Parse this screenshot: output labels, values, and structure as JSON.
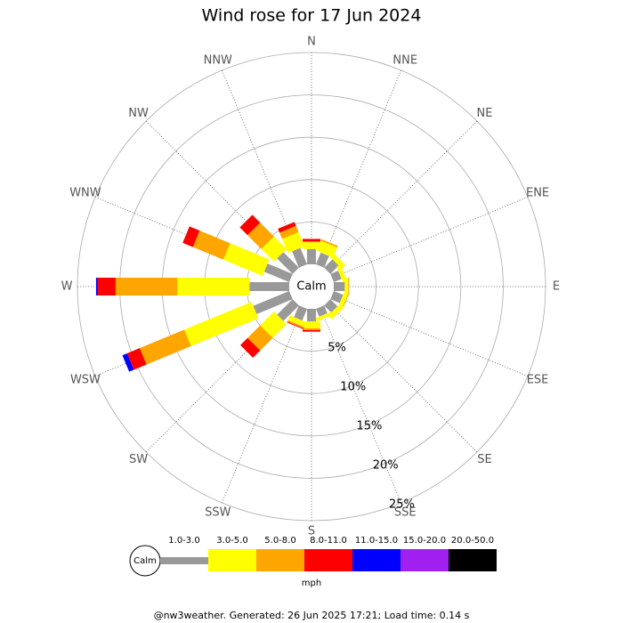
{
  "chart_data": {
    "type": "windrose",
    "title": "Wind rose for 17 Jun 2024",
    "directions": [
      "N",
      "NNE",
      "NE",
      "ENE",
      "E",
      "ESE",
      "SE",
      "SSE",
      "S",
      "SSW",
      "SW",
      "WSW",
      "W",
      "WNW",
      "NW",
      "NNW"
    ],
    "calm_label": "Calm",
    "unit": "mph",
    "rlim": [
      0,
      25
    ],
    "rticks": [
      {
        "value": 5,
        "label": "5%"
      },
      {
        "value": 10,
        "label": "10%"
      },
      {
        "value": 15,
        "label": "15%"
      },
      {
        "value": 20,
        "label": "20%"
      },
      {
        "value": 25,
        "label": "25%"
      }
    ],
    "series": [
      {
        "name": "1.0-3.0",
        "color": "#999999",
        "values": [
          1.8,
          1.5,
          1.4,
          1.0,
          1.3,
          1.2,
          1.2,
          1.0,
          1.5,
          1.5,
          2.6,
          4.6,
          4.7,
          3.2,
          2.6,
          2.1
        ]
      },
      {
        "name": "3.0-5.0",
        "color": "#ffff00",
        "values": [
          0.8,
          1.3,
          0.6,
          0.5,
          0.4,
          0.5,
          0.6,
          0.4,
          0.8,
          0.6,
          2.3,
          8.6,
          8.5,
          5.0,
          2.1,
          1.8
        ]
      },
      {
        "name": "5.0-8.0",
        "color": "#ffa500",
        "values": [
          0.1,
          0.2,
          0,
          0,
          0.1,
          0.1,
          0,
          0,
          0.2,
          0.2,
          2.1,
          5.7,
          7.3,
          3.9,
          2.3,
          0.8
        ]
      },
      {
        "name": "8.0-11.0",
        "color": "#ff0000",
        "values": [
          0.3,
          0,
          0,
          0,
          0,
          0,
          0,
          0,
          0.2,
          0.1,
          1.2,
          1.6,
          2.1,
          1.3,
          1.3,
          0.5
        ]
      },
      {
        "name": "11.0-15.0",
        "color": "#0000ff",
        "values": [
          0,
          0,
          0,
          0,
          0,
          0,
          0,
          0,
          0,
          0,
          0,
          0.6,
          0.2,
          0,
          0,
          0
        ]
      },
      {
        "name": "15.0-20.0",
        "color": "#a020f0",
        "values": [
          0,
          0,
          0,
          0,
          0,
          0,
          0,
          0,
          0,
          0,
          0,
          0,
          0,
          0,
          0,
          0
        ]
      },
      {
        "name": "20.0-50.0",
        "color": "#000000",
        "values": [
          0,
          0,
          0,
          0,
          0,
          0,
          0,
          0,
          0,
          0,
          0,
          0,
          0,
          0,
          0,
          0
        ]
      }
    ],
    "footer": "@nw3weather. Generated: 26 Jun 2025 17:21; Load time: 0.14 s"
  }
}
